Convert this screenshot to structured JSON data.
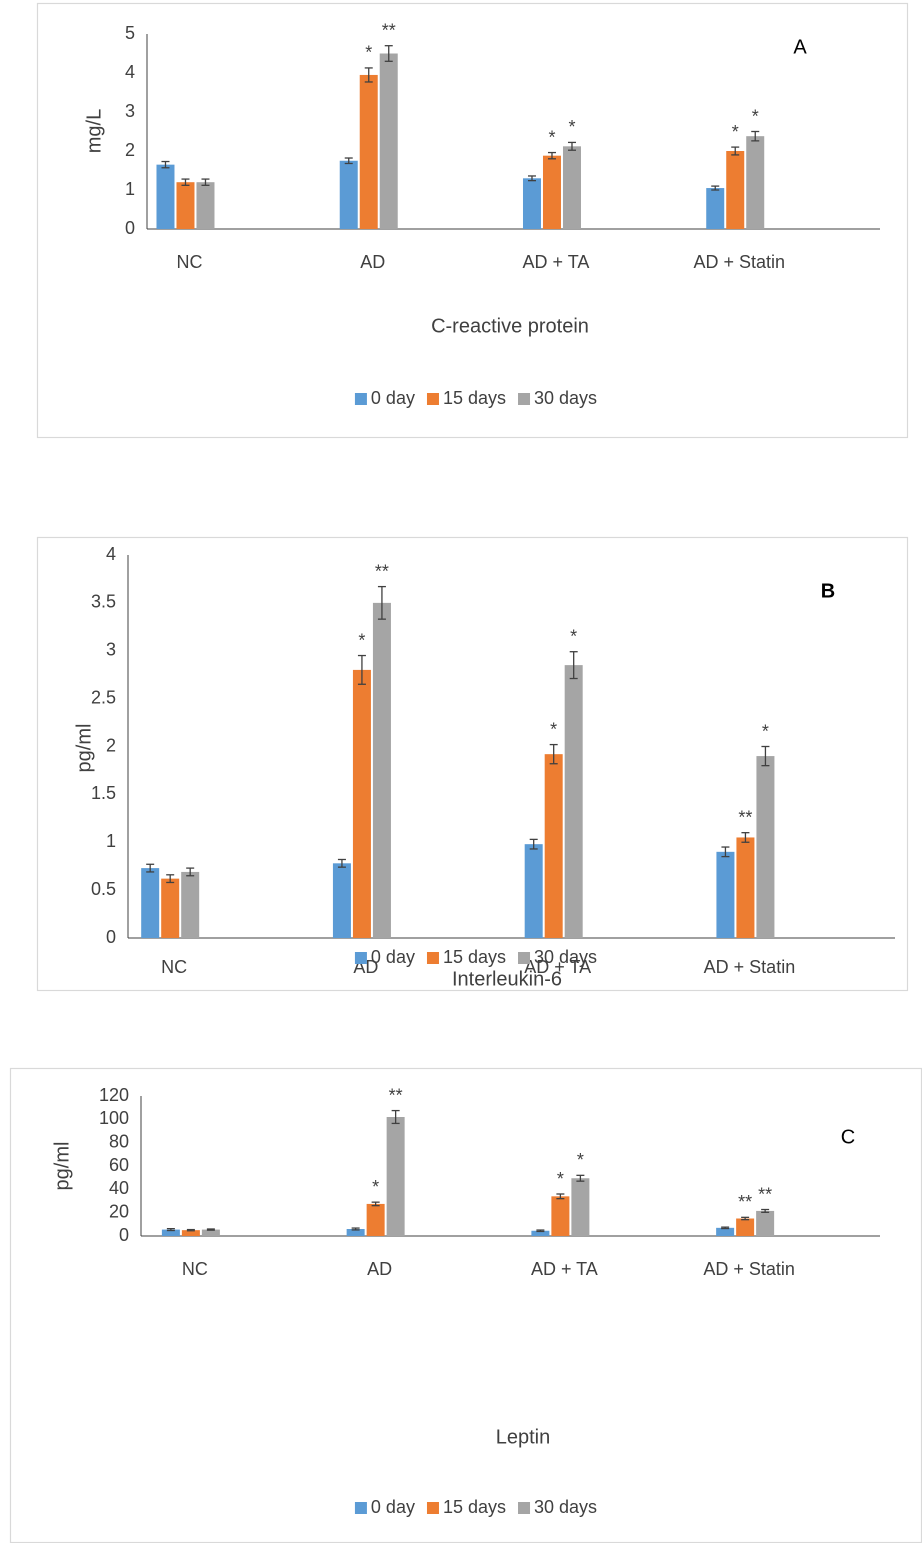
{
  "chart_data": [
    {
      "type": "bar",
      "title": "C-reactive protein",
      "y_label": "mg/L",
      "panel_label": "A",
      "categories": [
        "NC",
        "AD",
        "AD + TA",
        "AD + Statin"
      ],
      "series": [
        {
          "name": "0 day",
          "color": "#5b9bd5",
          "values": [
            1.65,
            1.75,
            1.3,
            1.05
          ],
          "errors": [
            0.08,
            0.07,
            0.06,
            0.05
          ],
          "annotations": [
            null,
            null,
            null,
            null
          ]
        },
        {
          "name": "15 days",
          "color": "#ed7d31",
          "values": [
            1.2,
            3.95,
            1.88,
            2.0
          ],
          "errors": [
            0.08,
            0.18,
            0.08,
            0.1
          ],
          "annotations": [
            null,
            "*",
            "*",
            "*"
          ]
        },
        {
          "name": "30 days",
          "color": "#a5a5a5",
          "values": [
            1.2,
            4.5,
            2.12,
            2.38
          ],
          "errors": [
            0.08,
            0.2,
            0.1,
            0.12
          ],
          "annotations": [
            null,
            "**",
            "*",
            "*"
          ]
        }
      ],
      "ylim": [
        0,
        5
      ],
      "yticks": [
        0,
        1,
        2,
        3,
        4,
        5
      ],
      "legend": "bottom"
    },
    {
      "type": "bar",
      "title": "Interleukin-6",
      "y_label": "pg/ml",
      "panel_label": "B",
      "categories": [
        "NC",
        "AD",
        "AD + TA",
        "AD + Statin"
      ],
      "series": [
        {
          "name": "0 day",
          "color": "#5b9bd5",
          "values": [
            0.73,
            0.78,
            0.98,
            0.9
          ],
          "errors": [
            0.04,
            0.04,
            0.05,
            0.05
          ],
          "annotations": [
            null,
            null,
            null,
            null
          ]
        },
        {
          "name": "15 days",
          "color": "#ed7d31",
          "values": [
            0.62,
            2.8,
            1.92,
            1.05
          ],
          "errors": [
            0.04,
            0.15,
            0.1,
            0.05
          ],
          "annotations": [
            null,
            "*",
            "*",
            "**"
          ]
        },
        {
          "name": "30 days",
          "color": "#a5a5a5",
          "values": [
            0.69,
            3.5,
            2.85,
            1.9
          ],
          "errors": [
            0.04,
            0.17,
            0.14,
            0.1
          ],
          "annotations": [
            null,
            "**",
            "*",
            "*"
          ]
        }
      ],
      "ylim": [
        0,
        4
      ],
      "yticks": [
        0,
        0.5,
        1,
        1.5,
        2,
        2.5,
        3,
        3.5,
        4
      ],
      "legend": "bottom"
    },
    {
      "type": "bar",
      "title": "Leptin",
      "y_label": "pg/ml",
      "panel_label": "C",
      "categories": [
        "NC",
        "AD",
        "AD + TA",
        "AD + Statin"
      ],
      "series": [
        {
          "name": "0 day",
          "color": "#5b9bd5",
          "values": [
            5.5,
            6,
            4.5,
            7
          ],
          "errors": [
            0.8,
            0.8,
            0.6,
            0.6
          ],
          "annotations": [
            null,
            null,
            null,
            null
          ]
        },
        {
          "name": "15 days",
          "color": "#ed7d31",
          "values": [
            5,
            27.5,
            34,
            15
          ],
          "errors": [
            0.5,
            1.5,
            2,
            1
          ],
          "annotations": [
            null,
            "*",
            "*",
            "**"
          ]
        },
        {
          "name": "30 days",
          "color": "#a5a5a5",
          "values": [
            5.5,
            102,
            49.5,
            21.5
          ],
          "errors": [
            0.5,
            5.5,
            2.5,
            1.2
          ],
          "annotations": [
            null,
            "**",
            "*",
            "**"
          ]
        }
      ],
      "ylim": [
        0,
        120
      ],
      "yticks": [
        0,
        20,
        40,
        60,
        80,
        100,
        120
      ],
      "legend": "bottom"
    }
  ]
}
